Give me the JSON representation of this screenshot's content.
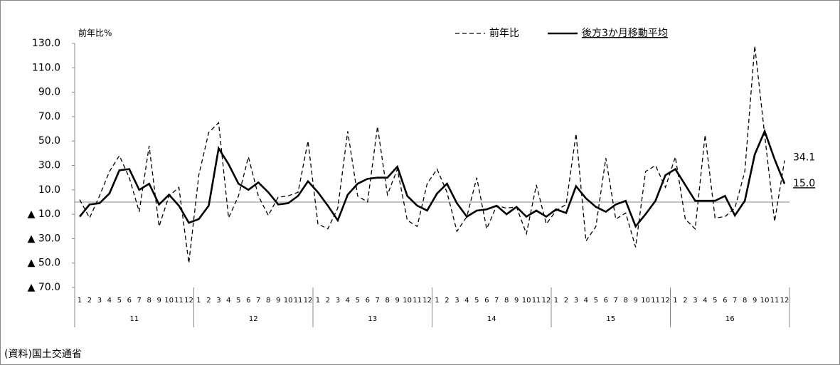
{
  "chart_data": {
    "type": "line",
    "y_label": "前年比%",
    "source": "(資料)国土交通省",
    "categories": [
      "1",
      "2",
      "3",
      "4",
      "5",
      "6",
      "7",
      "8",
      "9",
      "10",
      "11",
      "12",
      "1",
      "2",
      "3",
      "4",
      "5",
      "6",
      "7",
      "8",
      "9",
      "10",
      "11",
      "12",
      "1",
      "2",
      "3",
      "4",
      "5",
      "6",
      "7",
      "8",
      "9",
      "10",
      "11",
      "12",
      "1",
      "2",
      "3",
      "4",
      "5",
      "6",
      "7",
      "8",
      "9",
      "10",
      "11",
      "12",
      "1",
      "2",
      "3",
      "4",
      "5",
      "6",
      "7",
      "8",
      "9",
      "10",
      "11",
      "12",
      "1",
      "2",
      "3",
      "4",
      "5",
      "6",
      "7",
      "8",
      "9",
      "10",
      "11",
      "12"
    ],
    "category_groups": [
      "11",
      "12",
      "13",
      "14",
      "15",
      "16"
    ],
    "series": [
      {
        "name": "前年比",
        "color": "#000000",
        "dash": true,
        "values": [
          2,
          -13,
          5,
          25,
          38,
          20,
          -8,
          46,
          -20,
          5,
          12,
          -50,
          22,
          57,
          65,
          -13,
          5,
          37,
          5,
          -11,
          4,
          5,
          8,
          50,
          -18,
          -22,
          -5,
          58,
          5,
          0,
          62,
          6,
          27,
          -15,
          -20,
          15,
          27,
          8,
          -24,
          -12,
          20,
          -22,
          -3,
          -5,
          -4,
          -26,
          14,
          -18,
          -7,
          -2,
          56,
          -32,
          -20,
          36,
          -14,
          -9,
          -37,
          25,
          30,
          12,
          37,
          -14,
          -22,
          55,
          -13,
          -12,
          -5,
          25,
          128,
          55,
          -16,
          34.1
        ],
        "value_labels": [
          null,
          null,
          null,
          null,
          null,
          null,
          null,
          null,
          null,
          null,
          null,
          null,
          null,
          null,
          null,
          null,
          null,
          null,
          null,
          null,
          null,
          null,
          null,
          null,
          null,
          null,
          null,
          null,
          null,
          null,
          null,
          null,
          null,
          null,
          null,
          null,
          null,
          null,
          null,
          null,
          null,
          null,
          null,
          null,
          null,
          null,
          null,
          null,
          null,
          null,
          null,
          null,
          null,
          null,
          null,
          null,
          null,
          null,
          null,
          null,
          null,
          null,
          null,
          null,
          null,
          null,
          null,
          null,
          null,
          null,
          null,
          "34.1"
        ]
      },
      {
        "name": "後方3か月移動平均",
        "color": "#000000",
        "dash": false,
        "values": [
          -12,
          -2,
          -1,
          7,
          26,
          27,
          10,
          15,
          -2,
          6,
          -3,
          -17,
          -14,
          -3,
          44,
          31,
          15,
          10,
          16,
          8,
          -2,
          -1,
          5,
          17,
          8,
          -3,
          -15,
          6,
          15,
          19,
          20,
          20,
          29,
          5,
          -3,
          -7,
          7,
          15,
          -1,
          -12,
          -7,
          -6,
          -3,
          -10,
          -4,
          -12,
          -7,
          -12,
          -6,
          -9,
          13,
          3,
          -4,
          -8,
          -2,
          1,
          -20,
          -10,
          1,
          22,
          27,
          14,
          1,
          1,
          1,
          5,
          -11,
          1,
          39,
          58,
          35,
          15
        ],
        "value_labels": [
          null,
          null,
          null,
          null,
          null,
          null,
          null,
          null,
          null,
          null,
          null,
          null,
          null,
          null,
          null,
          null,
          null,
          null,
          null,
          null,
          null,
          null,
          null,
          null,
          null,
          null,
          null,
          null,
          null,
          null,
          null,
          null,
          null,
          null,
          null,
          null,
          null,
          null,
          null,
          null,
          null,
          null,
          null,
          null,
          null,
          null,
          null,
          null,
          null,
          null,
          null,
          null,
          null,
          null,
          null,
          null,
          null,
          null,
          null,
          null,
          null,
          null,
          null,
          null,
          null,
          null,
          null,
          null,
          null,
          null,
          null,
          "15.0"
        ]
      }
    ],
    "ylim": [
      -70,
      130
    ],
    "yticks": [
      {
        "value": 130,
        "label": "130.0"
      },
      {
        "value": 110,
        "label": "110.0"
      },
      {
        "value": 90,
        "label": "90.0"
      },
      {
        "value": 70,
        "label": "70.0"
      },
      {
        "value": 50,
        "label": "50.0"
      },
      {
        "value": 30,
        "label": "30.0"
      },
      {
        "value": 10,
        "label": "10.0"
      },
      {
        "value": -10,
        "label": "▲ 10.0"
      },
      {
        "value": -30,
        "label": "▲ 30.0"
      },
      {
        "value": -50,
        "label": "▲ 50.0"
      },
      {
        "value": -70,
        "label": "▲ 70.0"
      }
    ]
  }
}
